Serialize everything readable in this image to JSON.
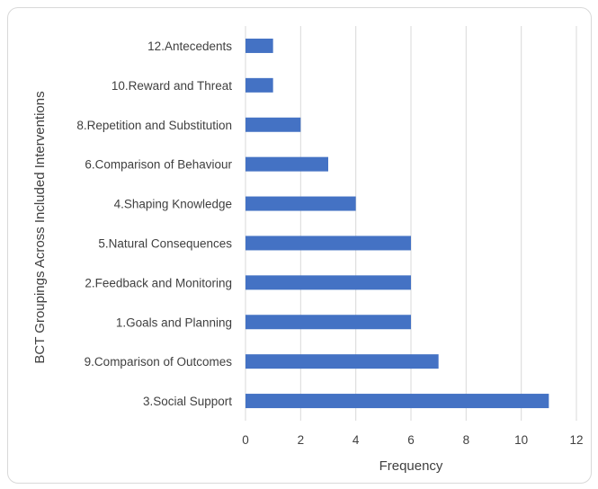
{
  "chart_data": {
    "type": "bar",
    "orientation": "horizontal",
    "title": "",
    "xlabel": "Frequency",
    "ylabel": "BCT Groupings Across Included Interventions",
    "categories": [
      "12.Antecedents",
      "10.Reward and Threat",
      "8.Repetition and Substitution",
      "6.Comparison of Behaviour",
      "4.Shaping Knowledge",
      "5.Natural Consequences",
      "2.Feedback and Monitoring",
      "1.Goals and Planning",
      "9.Comparison of Outcomes",
      "3.Social Support"
    ],
    "values": [
      1,
      1,
      2,
      3,
      4,
      6,
      6,
      6,
      7,
      11
    ],
    "xlim": [
      0,
      12
    ],
    "xticks": [
      0,
      2,
      4,
      6,
      8,
      10,
      12
    ],
    "grid": "vertical",
    "legend": "none",
    "colors": {
      "bar": "#4472C4",
      "grid": "#d9d9d9",
      "text": "#404040"
    }
  }
}
